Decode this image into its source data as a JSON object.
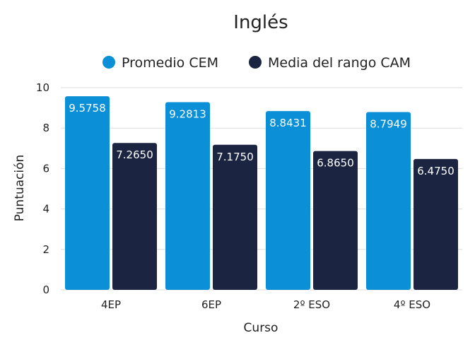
{
  "chart_data": {
    "type": "bar",
    "title": "Inglés",
    "xlabel": "Curso",
    "ylabel": "Puntuación",
    "categories": [
      "4EP",
      "6EP",
      "2º ESO",
      "4º ESO"
    ],
    "series": [
      {
        "name": "Promedio CEM",
        "values": [
          9.5758,
          9.2813,
          8.8431,
          8.7949
        ],
        "labels": [
          "9.5758",
          "9.2813",
          "8.8431",
          "8.7949"
        ],
        "color": "#0b8fd6"
      },
      {
        "name": "Media del rango CAM",
        "values": [
          7.265,
          7.175,
          6.865,
          6.475
        ],
        "labels": [
          "7.2650",
          "7.1750",
          "6.8650",
          "6.4750"
        ],
        "color": "#1b2440"
      }
    ],
    "ylim": [
      0,
      10
    ],
    "yticks": [
      0,
      2,
      4,
      6,
      8,
      10
    ],
    "grid": true,
    "legend_position": "top"
  }
}
